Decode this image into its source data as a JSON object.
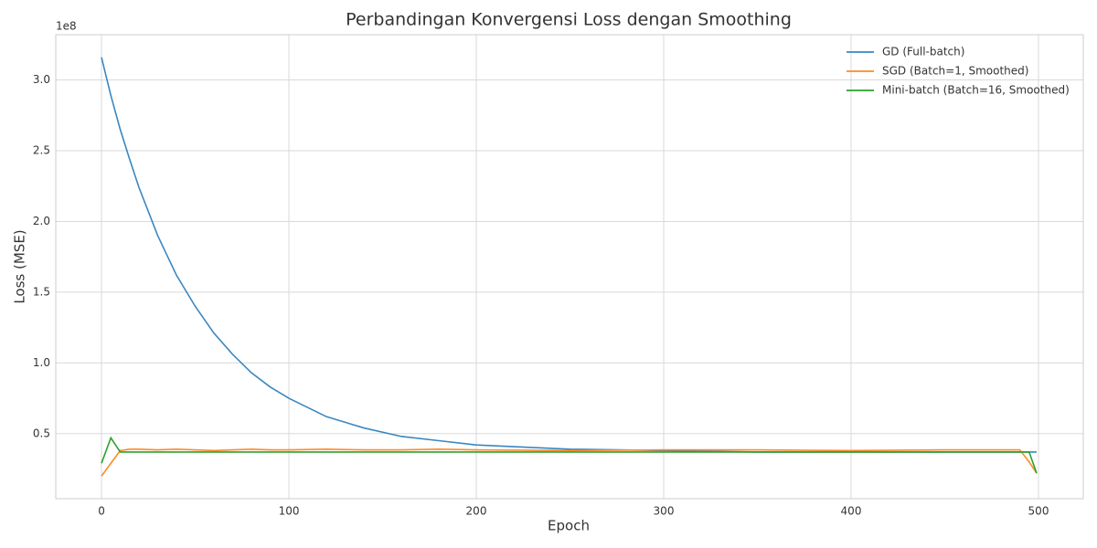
{
  "chart_data": {
    "type": "line",
    "title": "Perbandingan Konvergensi Loss dengan Smoothing",
    "x_label": "Epoch",
    "y_label": "Loss (MSE)",
    "y_offset_label": "1e8",
    "x": [
      0,
      5,
      10,
      15,
      20,
      30,
      40,
      50,
      60,
      70,
      80,
      90,
      100,
      120,
      140,
      160,
      180,
      200,
      250,
      300,
      350,
      400,
      450,
      490,
      495,
      499
    ],
    "series": [
      {
        "name": "GD (Full-batch)",
        "color": "#3a87c0",
        "values": [
          3.16,
          2.89,
          2.65,
          2.44,
          2.24,
          1.9,
          1.62,
          1.4,
          1.21,
          1.06,
          0.93,
          0.83,
          0.75,
          0.62,
          0.54,
          0.48,
          0.45,
          0.42,
          0.39,
          0.38,
          0.37,
          0.37,
          0.37,
          0.37,
          0.37,
          0.37
        ]
      },
      {
        "name": "SGD (Batch=1, Smoothed)",
        "color": "#ff8a25",
        "values": [
          0.2,
          0.29,
          0.38,
          0.39,
          0.39,
          0.385,
          0.39,
          0.385,
          0.38,
          0.385,
          0.39,
          0.385,
          0.385,
          0.39,
          0.385,
          0.385,
          0.39,
          0.385,
          0.38,
          0.385,
          0.385,
          0.38,
          0.385,
          0.385,
          0.3,
          0.22
        ]
      },
      {
        "name": "Mini-batch (Batch=16, Smoothed)",
        "color": "#2ca02c",
        "values": [
          0.29,
          0.47,
          0.37,
          0.37,
          0.37,
          0.37,
          0.37,
          0.37,
          0.37,
          0.37,
          0.37,
          0.37,
          0.37,
          0.37,
          0.37,
          0.37,
          0.37,
          0.37,
          0.37,
          0.37,
          0.37,
          0.37,
          0.37,
          0.37,
          0.37,
          0.22
        ]
      }
    ],
    "xlim": [
      -24.4,
      523.9
    ],
    "ylim": [
      0.04,
      3.32
    ],
    "xticks": [
      0,
      100,
      200,
      300,
      400,
      500
    ],
    "yticks": [
      0.5,
      {
        "value": 1,
        "label": "1.0"
      },
      1.5,
      {
        "value": 2,
        "label": "2.0"
      },
      2.5,
      {
        "value": 3,
        "label": "3.0"
      }
    ],
    "grid": true,
    "legend": "upper right"
  }
}
